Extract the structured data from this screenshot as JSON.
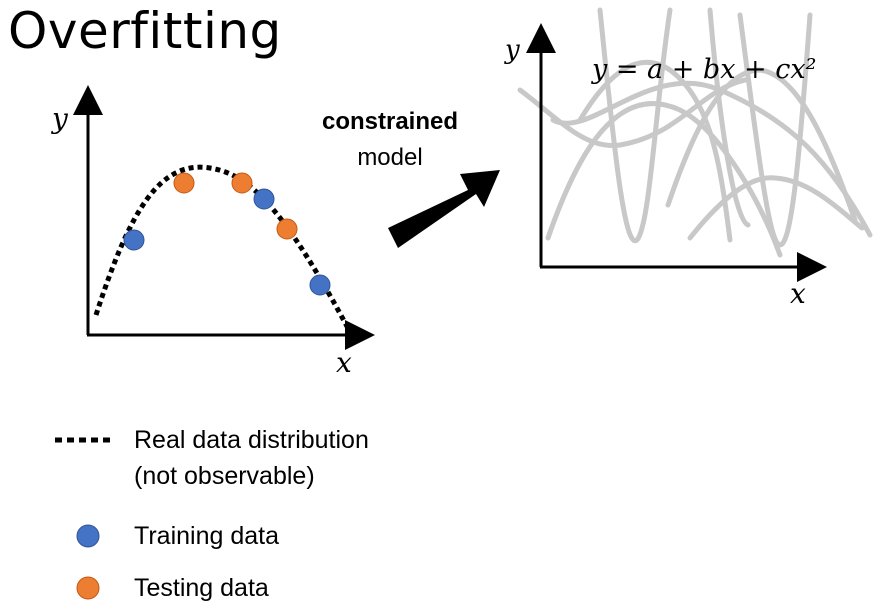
{
  "title": "Overfitting",
  "left_plot": {
    "x_label": "x",
    "y_label": "y",
    "training_color": "#4472C4",
    "testing_color": "#ED7D31"
  },
  "arrow": {
    "label_bold": "constrained",
    "label_plain": "model"
  },
  "right_plot": {
    "x_label": "x",
    "y_label": "y",
    "equation": "y = a + bx + cx²",
    "curve_color": "#c8c8c8"
  },
  "legend": {
    "items": [
      {
        "symbol": "dotted-line",
        "line1": "Real data distribution",
        "line2": "(not observable)"
      },
      {
        "symbol": "blue-dot",
        "label": "Training data"
      },
      {
        "symbol": "orange-dot",
        "label": "Testing data"
      }
    ]
  }
}
